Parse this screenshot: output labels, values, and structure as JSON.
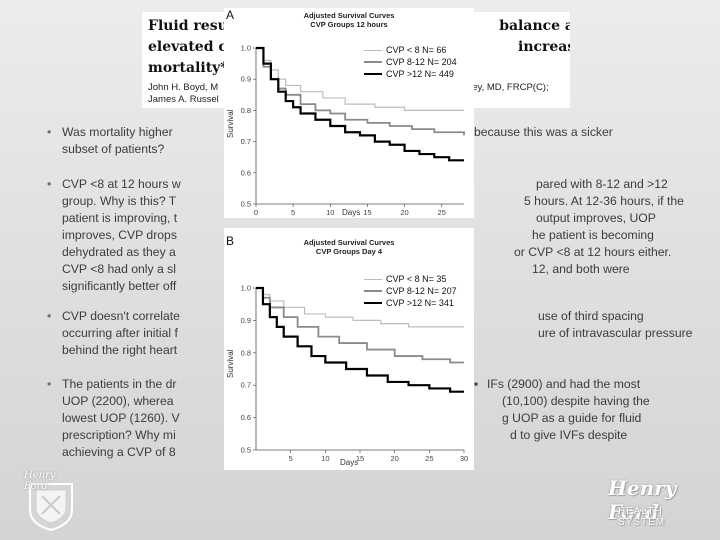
{
  "paper": {
    "title_left": [
      "Fluid resu",
      "elevated ce",
      "mortality*"
    ],
    "title_right": [
      "balance and",
      "increased"
    ],
    "authors_left": [
      "John H. Boyd, M",
      "James A. Russel"
    ],
    "authors_right": "R. Walley, MD, FRCP(C);"
  },
  "bullets": [
    {
      "lines": [
        "Was mortality higher",
        "because this was a sicker",
        "subset of patients?"
      ]
    },
    {
      "lines": [
        "CVP <8 at 12 hours w",
        "pared with 8-12 and >12",
        "group. Why is this? T",
        "5 hours. At 12-36 hours, if the",
        "patient is improving, t",
        "output improves, UOP",
        "improves, CVP drops",
        "he patient is becoming",
        "dehydrated as they a",
        "or CVP <8 at 12 hours either.",
        "CVP <8 had only a sl",
        "12, and both were",
        "significantly better off"
      ]
    },
    {
      "lines": [
        "CVP doesn't correlate",
        "use of third spacing",
        "occurring after initial f",
        "ure of intravascular pressure",
        "behind the right heart"
      ]
    },
    {
      "lines": [
        "The patients in the dr",
        "IFs (2900) and had the most",
        "UOP (2200), wherea",
        "(10,100) despite having the",
        "lowest UOP (1260). V",
        "g UOP as a guide for fluid",
        "prescription? Why mi",
        "d to give IVFs despite",
        "achieving a CVP of 8"
      ]
    }
  ],
  "chart_a": {
    "panel_label": "A",
    "title": [
      "Adjusted Survival Curves",
      "CVP Groups 12 hours"
    ],
    "ylabel": "Survival",
    "xlabel": "Days",
    "legend": [
      "CVP < 8 N= 66",
      "CVP 8-12 N= 204",
      "CVP >12 N= 449"
    ]
  },
  "chart_b": {
    "panel_label": "B",
    "title": [
      "Adjusted Survival Curves",
      "CVP Groups Day 4"
    ],
    "ylabel": "Survival",
    "xlabel": "Days",
    "legend": [
      "CVP < 8 N= 35",
      "CVP 8-12 N= 207",
      "CVP >12 N= 341"
    ]
  },
  "chart_data": [
    {
      "type": "line",
      "title": "Adjusted Survival Curves CVP Groups 12 hours",
      "xlabel": "Days",
      "ylabel": "Survival",
      "xlim": [
        0,
        28
      ],
      "ylim": [
        0.5,
        1.0
      ],
      "xticks": [
        0,
        5,
        10,
        15,
        20,
        25
      ],
      "yticks": [
        0.5,
        0.6,
        0.7,
        0.8,
        0.9,
        1.0
      ],
      "series": [
        {
          "name": "CVP < 8 N= 66",
          "color": "#bdbdbd",
          "width": 1.2,
          "x": [
            0,
            1,
            2,
            3,
            4,
            6,
            9,
            12,
            16,
            20,
            24,
            28
          ],
          "y": [
            1.0,
            0.96,
            0.93,
            0.9,
            0.88,
            0.86,
            0.84,
            0.82,
            0.81,
            0.8,
            0.8,
            0.8
          ]
        },
        {
          "name": "CVP 8-12 N= 204",
          "color": "#8a8a8a",
          "width": 1.8,
          "x": [
            0,
            1,
            2,
            3,
            4,
            6,
            8,
            10,
            12,
            15,
            18,
            21,
            24,
            28
          ],
          "y": [
            1.0,
            0.94,
            0.9,
            0.87,
            0.85,
            0.82,
            0.8,
            0.79,
            0.77,
            0.76,
            0.75,
            0.74,
            0.73,
            0.72
          ]
        },
        {
          "name": "CVP >12 N= 449",
          "color": "#000000",
          "width": 2.2,
          "x": [
            0,
            1,
            2,
            3,
            4,
            5,
            6,
            8,
            10,
            12,
            14,
            16,
            18,
            20,
            22,
            24,
            26,
            28
          ],
          "y": [
            1.0,
            0.95,
            0.9,
            0.86,
            0.83,
            0.81,
            0.79,
            0.77,
            0.75,
            0.73,
            0.72,
            0.7,
            0.69,
            0.67,
            0.66,
            0.65,
            0.64,
            0.64
          ]
        }
      ]
    },
    {
      "type": "line",
      "title": "Adjusted Survival Curves CVP Groups Day 4",
      "xlabel": "Days",
      "ylabel": "Survival",
      "xlim": [
        0,
        30
      ],
      "ylim": [
        0.5,
        1.0
      ],
      "xticks": [
        5,
        10,
        15,
        20,
        25,
        30
      ],
      "yticks": [
        0.5,
        0.6,
        0.7,
        0.8,
        0.9,
        1.0
      ],
      "series": [
        {
          "name": "CVP < 8 N= 35",
          "color": "#bdbdbd",
          "width": 1.2,
          "x": [
            0,
            1,
            2,
            4,
            7,
            10,
            14,
            18,
            22,
            26,
            30
          ],
          "y": [
            1.0,
            0.98,
            0.96,
            0.94,
            0.92,
            0.91,
            0.9,
            0.89,
            0.88,
            0.88,
            0.88
          ]
        },
        {
          "name": "CVP 8-12 N= 207",
          "color": "#8a8a8a",
          "width": 1.8,
          "x": [
            0,
            1,
            2,
            4,
            6,
            9,
            12,
            16,
            20,
            24,
            28,
            30
          ],
          "y": [
            1.0,
            0.97,
            0.94,
            0.91,
            0.88,
            0.85,
            0.83,
            0.81,
            0.79,
            0.78,
            0.77,
            0.77
          ]
        },
        {
          "name": "CVP >12 N= 341",
          "color": "#000000",
          "width": 2.2,
          "x": [
            0,
            1,
            2,
            3,
            4,
            6,
            8,
            10,
            13,
            16,
            19,
            22,
            25,
            28,
            30
          ],
          "y": [
            1.0,
            0.95,
            0.91,
            0.88,
            0.85,
            0.82,
            0.79,
            0.77,
            0.75,
            0.73,
            0.71,
            0.7,
            0.69,
            0.68,
            0.68
          ]
        }
      ]
    }
  ],
  "logos": {
    "left_text": "Henry Ford",
    "right_script": "Henry Ford",
    "right_sub": "HEALTH SYSTEM"
  },
  "colors": {
    "bg": "#e3e3e3",
    "text": "#3c3c3c",
    "chart_bg": "#ffffff"
  }
}
